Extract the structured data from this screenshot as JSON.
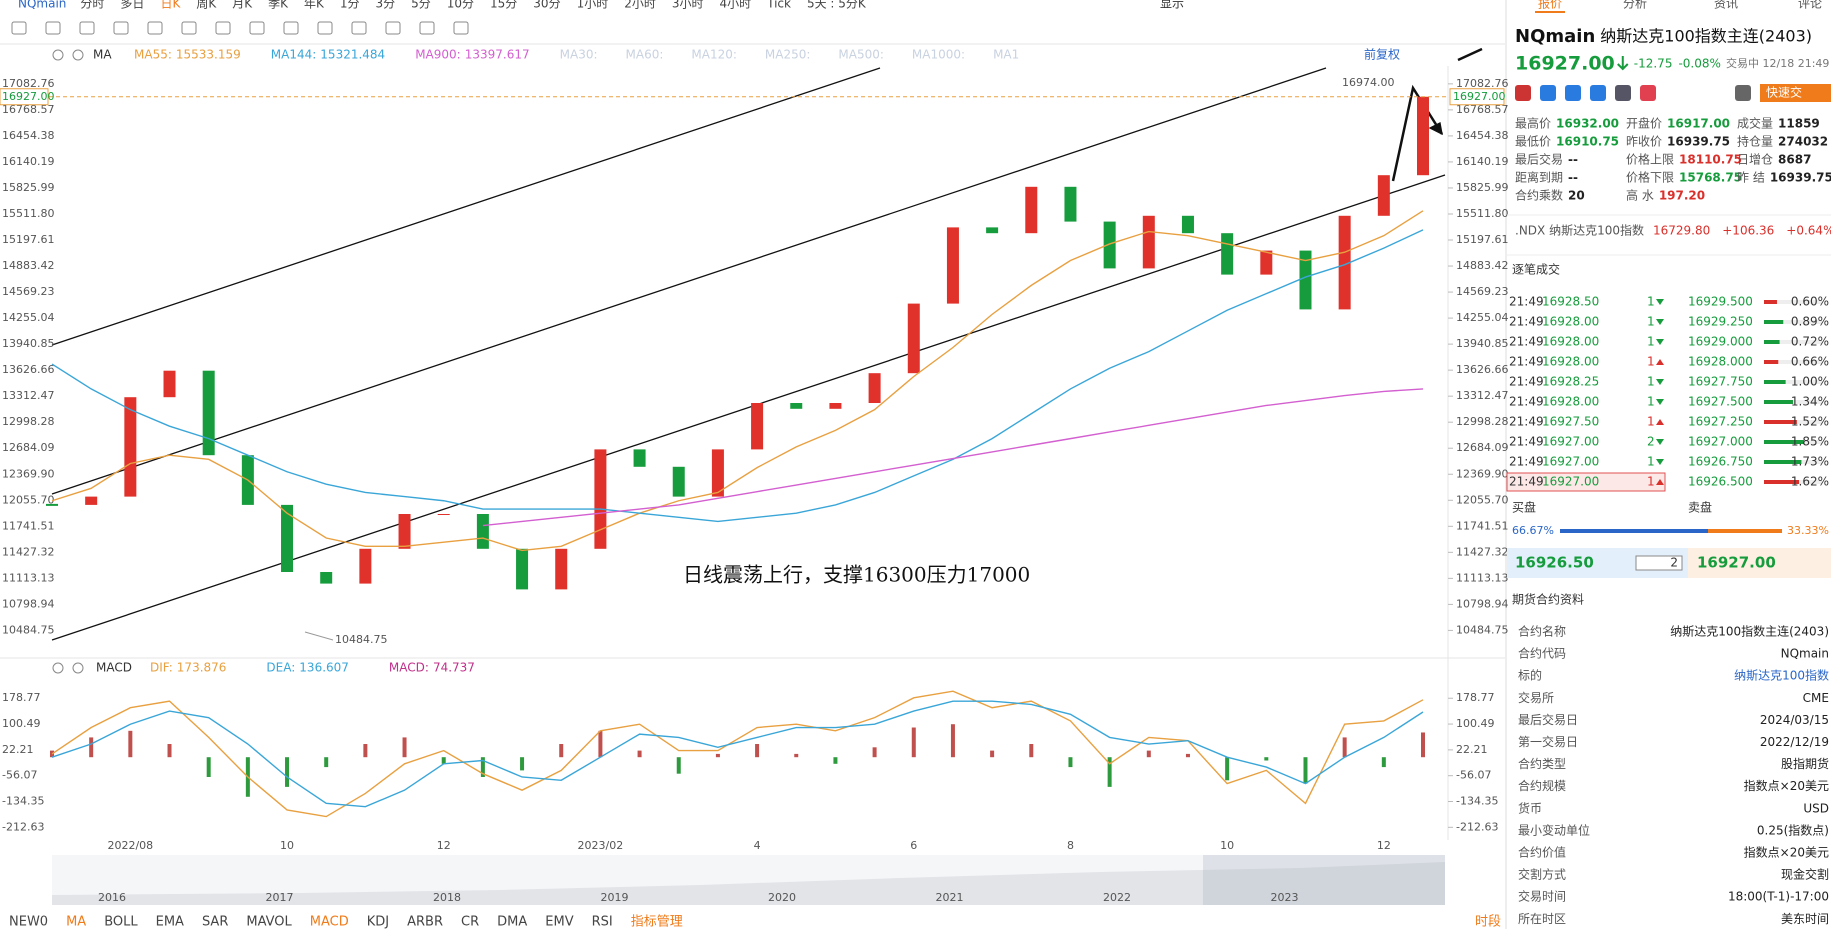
{
  "toolbar": {
    "symbol": "NQmain",
    "periods": [
      "分时",
      "多日",
      "日K",
      "周K",
      "月K",
      "季K",
      "年K",
      "1分",
      "3分",
      "5分",
      "10分",
      "15分",
      "30分",
      "1小时",
      "2小时",
      "3小时",
      "4小时",
      "Tick",
      "5天 : 5分K"
    ],
    "active_index": 2,
    "display": "显示"
  },
  "legend": {
    "name": "MA",
    "inactive": [
      "MA30:",
      "MA60:",
      "MA120:",
      "MA250:",
      "MA500:",
      "MA1000:",
      "MA1"
    ],
    "adjust": "前复权"
  },
  "chart_data": [
    {
      "type": "candlestick",
      "categories": [
        null,
        null,
        "2022/08",
        null,
        null,
        null,
        "10",
        null,
        null,
        null,
        "12",
        null,
        null,
        null,
        "2023/02",
        null,
        null,
        null,
        "4",
        null,
        null,
        null,
        "6",
        null,
        null,
        null,
        "8",
        null,
        null,
        null,
        "10",
        null,
        null,
        null,
        "12",
        null
      ],
      "close": [
        12000,
        12100,
        13300,
        13620,
        12600,
        12000,
        11190,
        11050,
        11470,
        11890,
        11890,
        11470,
        10980,
        11470,
        12670,
        12460,
        12100,
        12670,
        13230,
        13160,
        13230,
        13590,
        14430,
        15350,
        15280,
        15840,
        15420,
        14855,
        15490,
        15280,
        14780,
        15070,
        14360,
        15490,
        15980,
        16927
      ],
      "up_color": "#e0312b",
      "down_color": "#169c3c",
      "series": [
        {
          "name": "MA55:",
          "color": "#e8a040",
          "legend_value": "15533.159",
          "values": [
            12050,
            12200,
            12500,
            12600,
            12550,
            12300,
            11900,
            11600,
            11500,
            11500,
            11550,
            11600,
            11450,
            11500,
            11700,
            11900,
            12050,
            12150,
            12450,
            12700,
            12900,
            13150,
            13550,
            13900,
            14300,
            14650,
            14950,
            15150,
            15300,
            15250,
            15150,
            15050,
            14950,
            15050,
            15250,
            15550
          ]
        },
        {
          "name": "MA144:",
          "color": "#3aa6d8",
          "legend_value": "15321.484",
          "values": [
            13700,
            13400,
            13150,
            12950,
            12800,
            12600,
            12400,
            12250,
            12150,
            12100,
            12050,
            11950,
            11950,
            11950,
            11950,
            11900,
            11850,
            11800,
            11850,
            11900,
            12000,
            12150,
            12350,
            12550,
            12800,
            13100,
            13400,
            13650,
            13850,
            14100,
            14350,
            14550,
            14750,
            14900,
            15100,
            15320
          ]
        },
        {
          "name": "MA900:",
          "color": "#d35fd0",
          "legend_value": "13397.617",
          "values": [
            null,
            null,
            null,
            null,
            null,
            null,
            null,
            null,
            null,
            null,
            null,
            11750,
            11800,
            11850,
            11900,
            11950,
            12000,
            12080,
            12160,
            12240,
            12320,
            12400,
            12480,
            12560,
            12640,
            12720,
            12800,
            12880,
            12960,
            13040,
            13120,
            13200,
            13260,
            13320,
            13370,
            13400
          ]
        }
      ],
      "ylim": [
        10200,
        17250
      ],
      "yticks": [
        17082.76,
        16768.57,
        16454.38,
        16140.19,
        15825.99,
        {
          "value": 15511.8,
          "label": "15511.80"
        },
        15197.61,
        14883.42,
        14569.23,
        14255.04,
        13940.85,
        13626.66,
        13312.47,
        12998.28,
        12684.09,
        {
          "value": 12369.9,
          "label": "12369.90"
        },
        {
          "value": 12055.7,
          "label": "12055.70"
        },
        11741.51,
        11427.32,
        11113.13,
        10798.94,
        10484.75
      ],
      "last_price": {
        "value": 16927,
        "label": "16927.00"
      },
      "high_label": "16974.00",
      "low_label": "10484.75",
      "annotation": "日线震荡上行，支撑16300压力17000"
    },
    {
      "type": "macd",
      "title": "MACD",
      "series": [
        {
          "name": "DIF:",
          "color": "#e8a040",
          "legend_value": "173.876",
          "values": [
            10,
            90,
            150,
            170,
            60,
            -60,
            -160,
            -180,
            -110,
            -20,
            20,
            -50,
            -100,
            -40,
            80,
            100,
            20,
            20,
            90,
            100,
            80,
            120,
            180,
            200,
            150,
            170,
            110,
            -20,
            60,
            50,
            -80,
            -40,
            -140,
            100,
            110,
            174
          ]
        },
        {
          "name": "DEA:",
          "color": "#3aa6d8",
          "legend_value": "136.607",
          "values": [
            0,
            40,
            100,
            140,
            120,
            40,
            -60,
            -140,
            -150,
            -100,
            -20,
            -10,
            -60,
            -70,
            0,
            70,
            60,
            30,
            60,
            90,
            90,
            100,
            140,
            170,
            170,
            160,
            130,
            60,
            40,
            50,
            0,
            -30,
            -80,
            0,
            60,
            137
          ]
        },
        {
          "name": "MACD:",
          "color": "#c0308a",
          "legend_value": "74.737",
          "up_color": "#c0504d",
          "down_color": "#2e9a3e",
          "values": [
            20,
            60,
            80,
            40,
            -60,
            -120,
            -90,
            -30,
            40,
            60,
            -20,
            -60,
            -40,
            40,
            80,
            20,
            -50,
            10,
            40,
            10,
            -20,
            30,
            90,
            100,
            20,
            40,
            -30,
            -90,
            20,
            10,
            -70,
            -10,
            -80,
            60,
            -30,
            75
          ]
        }
      ],
      "ylim": [
        -245,
        225
      ],
      "yticks": [
        178.77,
        100.49,
        22.21,
        -56.07,
        -134.35,
        -212.63
      ]
    }
  ],
  "navigator": {
    "years": [
      "2016",
      "2017",
      "2018",
      "2019",
      "2020",
      "2021",
      "2022",
      "2023"
    ]
  },
  "indicators": {
    "tabs": [
      "NEW0",
      "MA",
      "BOLL",
      "EMA",
      "SAR",
      "MAVOL",
      "MACD",
      "KDJ",
      "ARBR",
      "CR",
      "DMA",
      "EMV",
      "RSI"
    ],
    "active": [
      1,
      6
    ],
    "manage": "指标管理",
    "session": "时段"
  },
  "quote": {
    "tabs": [
      "报价",
      "分析",
      "资讯",
      "评论"
    ],
    "symbol": "NQmain",
    "name": "纳斯达克100指数主连(2403)",
    "price": "16927.00",
    "change": "-12.75",
    "change_pct": "-0.08%",
    "status": "交易中 12/18 21:49",
    "quick": "快速交",
    "stats": [
      [
        {
          "label": "最高价",
          "value": "16932.00",
          "color": "#169c3c"
        },
        {
          "label": "开盘价",
          "value": "16917.00",
          "color": "#169c3c"
        },
        {
          "label": "成交量",
          "value": "11859",
          "color": "#222"
        }
      ],
      [
        {
          "label": "最低价",
          "value": "16910.75",
          "color": "#169c3c"
        },
        {
          "label": "昨收价",
          "value": "16939.75",
          "color": "#222"
        },
        {
          "label": "持仓量",
          "value": "274032",
          "color": "#222"
        }
      ],
      [
        {
          "label": "最后交易",
          "value": "--",
          "color": "#222"
        },
        {
          "label": "价格上限",
          "value": "18110.75",
          "color": "#d9302b"
        },
        {
          "label": "日增仓",
          "value": "8687",
          "color": "#222"
        }
      ],
      [
        {
          "label": "距离到期",
          "value": "--",
          "color": "#222"
        },
        {
          "label": "价格下限",
          "value": "15768.75",
          "color": "#169c3c"
        },
        {
          "label": "昨 结",
          "value": "16939.75",
          "color": "#222"
        }
      ],
      [
        {
          "label": "合约乘数",
          "value": "20",
          "color": "#222"
        },
        {
          "label": "高 水",
          "value": "197.20",
          "color": "#d9302b"
        }
      ]
    ],
    "index": {
      "name": ".NDX 纳斯达克100指数",
      "price": "16729.80",
      "change": "+106.36",
      "change_pct": "+0.64%"
    }
  },
  "trades": {
    "title": "逐笔成交",
    "rows": [
      {
        "time": "21:49",
        "price": "16928.50",
        "qty": "1",
        "dir": "down"
      },
      {
        "time": "21:49",
        "price": "16928.00",
        "qty": "1",
        "dir": "down"
      },
      {
        "time": "21:49",
        "price": "16928.00",
        "qty": "1",
        "dir": "down"
      },
      {
        "time": "21:49",
        "price": "16928.00",
        "qty": "1",
        "dir": "up"
      },
      {
        "time": "21:49",
        "price": "16928.25",
        "qty": "1",
        "dir": "down"
      },
      {
        "time": "21:49",
        "price": "16928.00",
        "qty": "1",
        "dir": "down"
      },
      {
        "time": "21:49",
        "price": "16927.50",
        "qty": "1",
        "dir": "up"
      },
      {
        "time": "21:49",
        "price": "16927.00",
        "qty": "2",
        "dir": "down"
      },
      {
        "time": "21:49",
        "price": "16927.00",
        "qty": "1",
        "dir": "down"
      },
      {
        "time": "21:49",
        "price": "16927.00",
        "qty": "1",
        "dir": "up"
      }
    ],
    "distribution": [
      {
        "price": "16929.500",
        "pct": {
          "value": 0.6,
          "label": "0.60%"
        }
      },
      {
        "price": "16929.250",
        "pct": {
          "value": 0.89,
          "label": "0.89%"
        }
      },
      {
        "price": "16929.000",
        "pct": {
          "value": 0.72,
          "label": "0.72%"
        }
      },
      {
        "price": "16928.000",
        "pct": {
          "value": 0.66,
          "label": "0.66%"
        }
      },
      {
        "price": "16927.750",
        "pct": {
          "value": 1,
          "label": "1.00%"
        }
      },
      {
        "price": "16927.500",
        "pct": {
          "value": 1.34,
          "label": "1.34%"
        }
      },
      {
        "price": "16927.250",
        "pct": {
          "value": 1.52,
          "label": "1.52%"
        }
      },
      {
        "price": "16927.000",
        "pct": {
          "value": 1.85,
          "label": "1.85%"
        }
      },
      {
        "price": "16926.750",
        "pct": {
          "value": 1.73,
          "label": "1.73%"
        }
      },
      {
        "price": "16926.500",
        "pct": {
          "value": 1.62,
          "label": "1.62%"
        }
      }
    ]
  },
  "book": {
    "bid_title": "买盘",
    "ask_title": "卖盘",
    "bid_pct": {
      "value": 66.67,
      "label": "66.67%"
    },
    "ask_pct": {
      "value": 33.33,
      "label": "33.33%"
    },
    "bid": "16926.50",
    "qty": "2",
    "ask": "16927.00"
  },
  "contract": {
    "title": "期货合约资料",
    "rows": [
      [
        "合约名称",
        "纳斯达克100指数主连(2403)"
      ],
      [
        "合约代码",
        "NQmain"
      ],
      [
        "标的",
        "纳斯达克100指数"
      ],
      [
        "交易所",
        "CME"
      ],
      [
        "最后交易日",
        "2024/03/15"
      ],
      [
        "第一交易日",
        "2022/12/19"
      ],
      [
        "合约类型",
        "股指期货"
      ],
      [
        "合约规模",
        "指数点×20美元"
      ],
      [
        "货币",
        "USD"
      ],
      [
        "最小变动单位",
        "0.25(指数点)"
      ],
      [
        "合约价值",
        "指数点×20美元"
      ],
      [
        "交割方式",
        "现金交割"
      ],
      [
        "交易时间",
        "18:00(T-1)-17:00"
      ],
      [
        "所在时区",
        "美东时间"
      ]
    ]
  }
}
